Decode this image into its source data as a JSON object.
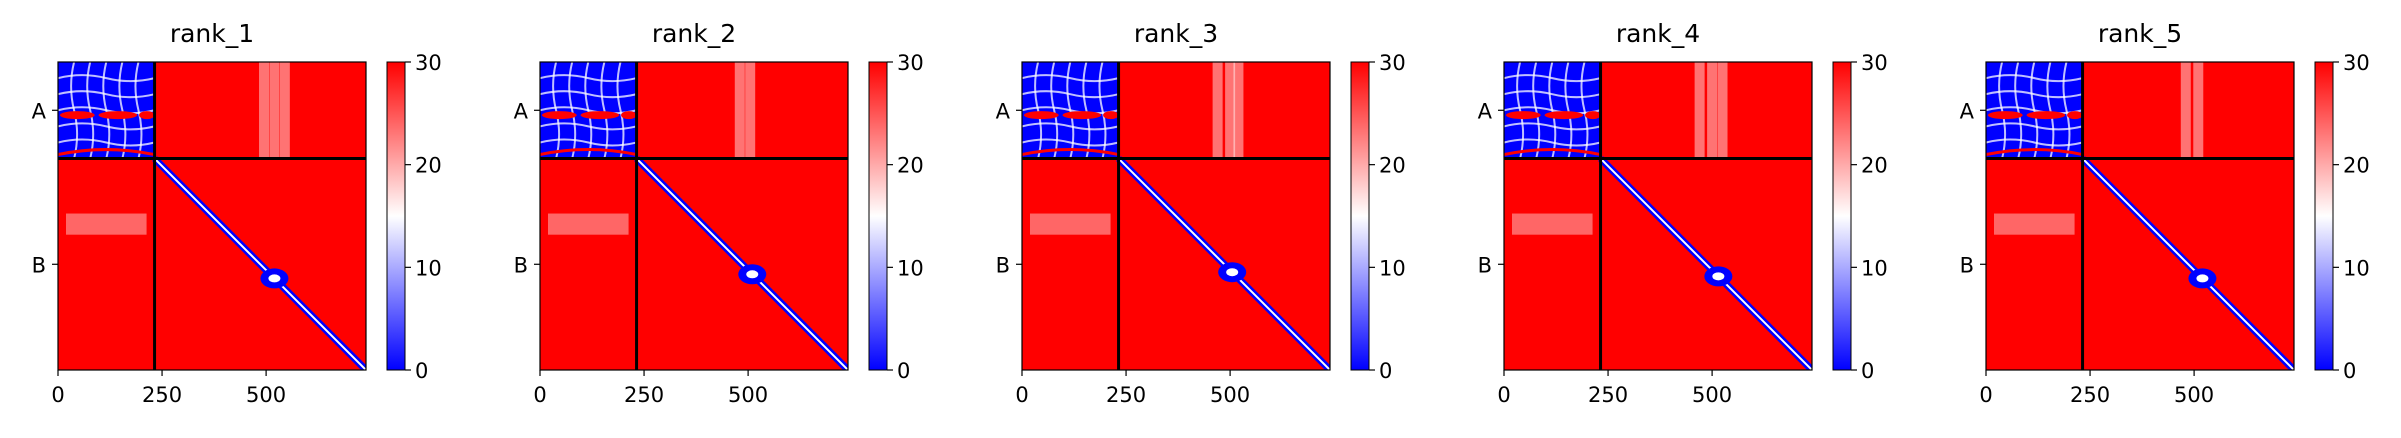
{
  "chart_data": [
    {
      "type": "heatmap",
      "title": "rank_1",
      "chains": [
        "A",
        "B"
      ],
      "chain_boundary": 232,
      "x_ticks": [
        "0",
        "250",
        "500"
      ],
      "x_tick_values": [
        0,
        250,
        500
      ],
      "xlim": [
        0,
        740
      ],
      "colorbar": {
        "ticks": [
          "0",
          "10",
          "20",
          "30"
        ],
        "tick_values": [
          0,
          10,
          20,
          30
        ],
        "range": [
          0,
          30
        ]
      },
      "diagonal_feature_center": 520,
      "inter_chain_stripes": [
        495,
        520,
        545
      ]
    },
    {
      "type": "heatmap",
      "title": "rank_2",
      "chains": [
        "A",
        "B"
      ],
      "chain_boundary": 232,
      "x_ticks": [
        "0",
        "250",
        "500"
      ],
      "x_tick_values": [
        0,
        250,
        500
      ],
      "xlim": [
        0,
        740
      ],
      "colorbar": {
        "ticks": [
          "0",
          "10",
          "20",
          "30"
        ],
        "tick_values": [
          0,
          10,
          20,
          30
        ],
        "range": [
          0,
          30
        ]
      },
      "diagonal_feature_center": 510,
      "inter_chain_stripes": [
        480,
        505
      ]
    },
    {
      "type": "heatmap",
      "title": "rank_3",
      "chains": [
        "A",
        "B"
      ],
      "chain_boundary": 232,
      "x_ticks": [
        "0",
        "250",
        "500"
      ],
      "x_tick_values": [
        0,
        250,
        500
      ],
      "xlim": [
        0,
        740
      ],
      "colorbar": {
        "ticks": [
          "0",
          "10",
          "20",
          "30"
        ],
        "tick_values": [
          0,
          10,
          20,
          30
        ],
        "range": [
          0,
          30
        ]
      },
      "diagonal_feature_center": 505,
      "inter_chain_stripes": [
        470,
        500,
        520
      ]
    },
    {
      "type": "heatmap",
      "title": "rank_4",
      "chains": [
        "A",
        "B"
      ],
      "chain_boundary": 232,
      "x_ticks": [
        "0",
        "250",
        "500"
      ],
      "x_tick_values": [
        0,
        250,
        500
      ],
      "xlim": [
        0,
        740
      ],
      "colorbar": {
        "ticks": [
          "0",
          "10",
          "20",
          "30"
        ],
        "tick_values": [
          0,
          10,
          20,
          30
        ],
        "range": [
          0,
          30
        ]
      },
      "diagonal_feature_center": 515,
      "inter_chain_stripes": [
        470,
        500,
        525
      ]
    },
    {
      "type": "heatmap",
      "title": "rank_5",
      "chains": [
        "A",
        "B"
      ],
      "chain_boundary": 232,
      "x_ticks": [
        "0",
        "250",
        "500"
      ],
      "x_tick_values": [
        0,
        250,
        500
      ],
      "xlim": [
        0,
        740
      ],
      "colorbar": {
        "ticks": [
          "0",
          "10",
          "20",
          "30"
        ],
        "tick_values": [
          0,
          10,
          20,
          30
        ],
        "range": [
          0,
          30
        ]
      },
      "diagonal_feature_center": 520,
      "inter_chain_stripes": [
        480,
        510
      ]
    }
  ],
  "colors": {
    "low": "#0000ff",
    "mid": "#ffffff",
    "high": "#ff0000",
    "divider": "#000000"
  }
}
